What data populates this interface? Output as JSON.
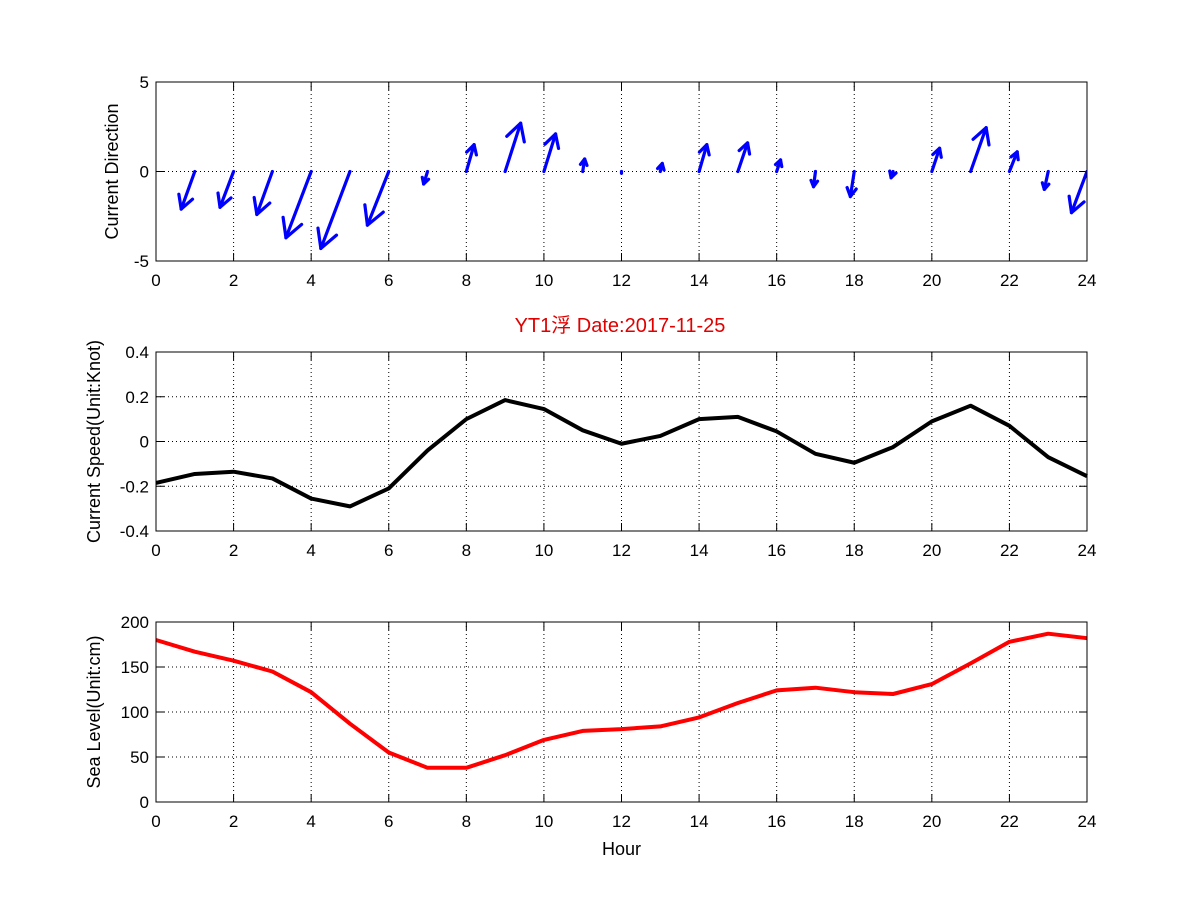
{
  "title": "YT1浮   Date:2017-11-25",
  "title_color": "#e00000",
  "chart_data": [
    {
      "type": "quiver",
      "ylabel": "Current Direction",
      "xlim": [
        0,
        24
      ],
      "ylim": [
        -5,
        5
      ],
      "xticks": [
        0,
        2,
        4,
        6,
        8,
        10,
        12,
        14,
        16,
        18,
        20,
        22,
        24
      ],
      "yticks": [
        -5,
        0,
        5
      ],
      "grid": true,
      "color": "#0000ff",
      "base_y": 0,
      "x": [
        1,
        2,
        3,
        4,
        5,
        6,
        7,
        8,
        9,
        10,
        11,
        12,
        13,
        14,
        15,
        16,
        17,
        18,
        19,
        20,
        21,
        22,
        23,
        24
      ],
      "u": [
        -0.35,
        -0.35,
        -0.4,
        -0.65,
        -0.75,
        -0.55,
        -0.1,
        0.2,
        0.4,
        0.3,
        0.05,
        0.0,
        0.05,
        0.2,
        0.25,
        0.1,
        -0.05,
        -0.1,
        -0.05,
        0.2,
        0.4,
        0.2,
        -0.1,
        -0.4
      ],
      "v": [
        -2.1,
        -2.0,
        -2.4,
        -3.7,
        -4.3,
        -3.0,
        -0.7,
        1.5,
        2.7,
        2.1,
        0.7,
        -0.1,
        0.45,
        1.5,
        1.6,
        0.65,
        -0.85,
        -1.4,
        -0.35,
        1.3,
        2.45,
        1.1,
        -1.0,
        -2.3
      ]
    },
    {
      "type": "line",
      "ylabel": "Current Speed(Unit:Knot)",
      "xlim": [
        0,
        24
      ],
      "ylim": [
        -0.4,
        0.4
      ],
      "xticks": [
        0,
        2,
        4,
        6,
        8,
        10,
        12,
        14,
        16,
        18,
        20,
        22,
        24
      ],
      "yticks": [
        -0.4,
        -0.2,
        0,
        0.2,
        0.4
      ],
      "grid": true,
      "color": "#000000",
      "x": [
        0,
        1,
        2,
        3,
        4,
        5,
        6,
        7,
        8,
        9,
        10,
        11,
        12,
        13,
        14,
        15,
        16,
        17,
        18,
        19,
        20,
        21,
        22,
        23,
        24
      ],
      "y": [
        -0.185,
        -0.145,
        -0.135,
        -0.165,
        -0.255,
        -0.29,
        -0.21,
        -0.04,
        0.1,
        0.185,
        0.145,
        0.05,
        -0.01,
        0.025,
        0.1,
        0.11,
        0.045,
        -0.055,
        -0.095,
        -0.025,
        0.09,
        0.16,
        0.07,
        -0.07,
        -0.155
      ]
    },
    {
      "type": "line",
      "xlabel": "Hour",
      "ylabel": "Sea Level(Unit:cm)",
      "xlim": [
        0,
        24
      ],
      "ylim": [
        0,
        200
      ],
      "xticks": [
        0,
        2,
        4,
        6,
        8,
        10,
        12,
        14,
        16,
        18,
        20,
        22,
        24
      ],
      "yticks": [
        0,
        50,
        100,
        150,
        200
      ],
      "grid": true,
      "color": "#ff0000",
      "x": [
        0,
        1,
        2,
        3,
        4,
        5,
        6,
        7,
        8,
        9,
        10,
        11,
        12,
        13,
        14,
        15,
        16,
        17,
        18,
        19,
        20,
        21,
        22,
        23,
        24
      ],
      "y": [
        180,
        167,
        157,
        145,
        122,
        87,
        55,
        38,
        38,
        52,
        69,
        79,
        81,
        84,
        94,
        110,
        124,
        127,
        122,
        120,
        131,
        154,
        178,
        187,
        182
      ]
    }
  ]
}
